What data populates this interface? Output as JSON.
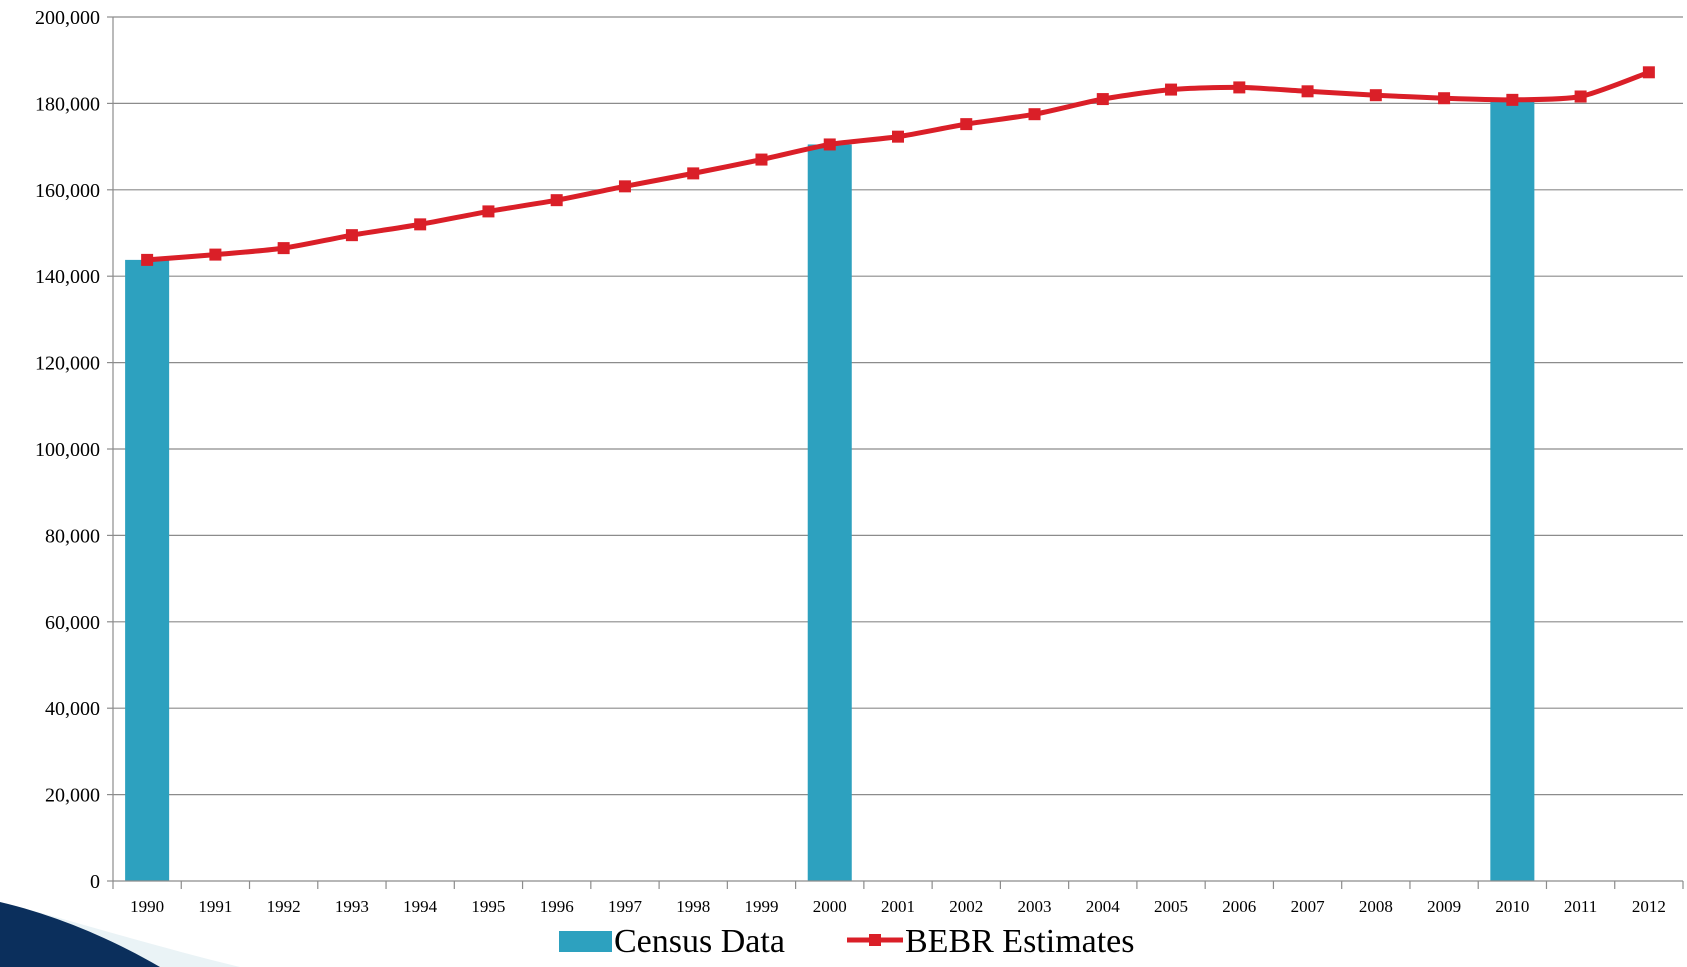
{
  "chart_data": {
    "type": "bar",
    "categories": [
      "1990",
      "1991",
      "1992",
      "1993",
      "1994",
      "1995",
      "1996",
      "1997",
      "1998",
      "1999",
      "2000",
      "2001",
      "2002",
      "2003",
      "2004",
      "2005",
      "2006",
      "2007",
      "2008",
      "2009",
      "2010",
      "2011",
      "2012"
    ],
    "ylim": [
      0,
      200000
    ],
    "yticks": [
      "0",
      "20,000",
      "40,000",
      "60,000",
      "80,000",
      "100,000",
      "120,000",
      "140,000",
      "160,000",
      "180,000",
      "200,000"
    ],
    "grid": true,
    "legend_position": "bottom-center",
    "series": [
      {
        "name": "Census Data",
        "type": "bar",
        "color": "#2DA1BF",
        "values": [
          143776,
          null,
          null,
          null,
          null,
          null,
          null,
          null,
          null,
          null,
          170498,
          null,
          null,
          null,
          null,
          null,
          null,
          null,
          null,
          null,
          180822,
          null,
          null
        ]
      },
      {
        "name": "BEBR Estimates",
        "type": "line",
        "color": "#DA1F28",
        "marker": "square",
        "values": [
          143776,
          145000,
          146500,
          149500,
          152000,
          155000,
          157600,
          160800,
          163800,
          167000,
          170498,
          172300,
          175200,
          177500,
          181000,
          183200,
          183700,
          182800,
          181900,
          181200,
          180822,
          181600,
          187200
        ]
      }
    ]
  },
  "decor": {
    "corner_icon": "arrow-swoosh-icon",
    "corner_color": "#0B2F5C"
  }
}
